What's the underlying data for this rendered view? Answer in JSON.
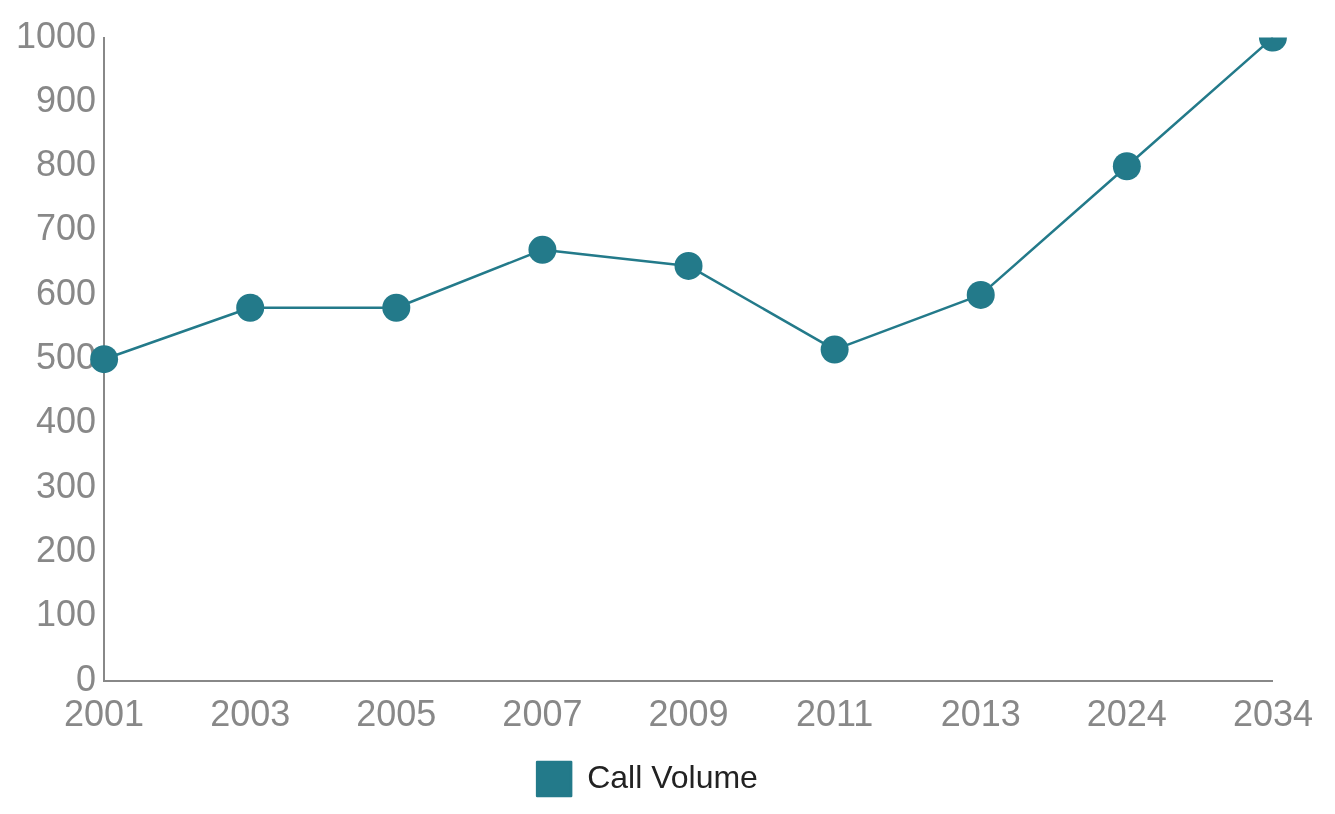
{
  "chart_data": {
    "type": "line",
    "categories": [
      "2001",
      "2003",
      "2005",
      "2007",
      "2009",
      "2011",
      "2013",
      "2024",
      "2034"
    ],
    "series": [
      {
        "name": "Call Volume",
        "color": "#237a8a",
        "values": [
          500,
          580,
          580,
          670,
          645,
          515,
          600,
          800,
          1000
        ]
      }
    ],
    "ylim": [
      0,
      1000
    ],
    "yticks": [
      0,
      100,
      200,
      300,
      400,
      500,
      600,
      700,
      800,
      900,
      1000
    ],
    "grid": false,
    "legend": "bottom",
    "marker": "circle",
    "line_style": "solid"
  }
}
